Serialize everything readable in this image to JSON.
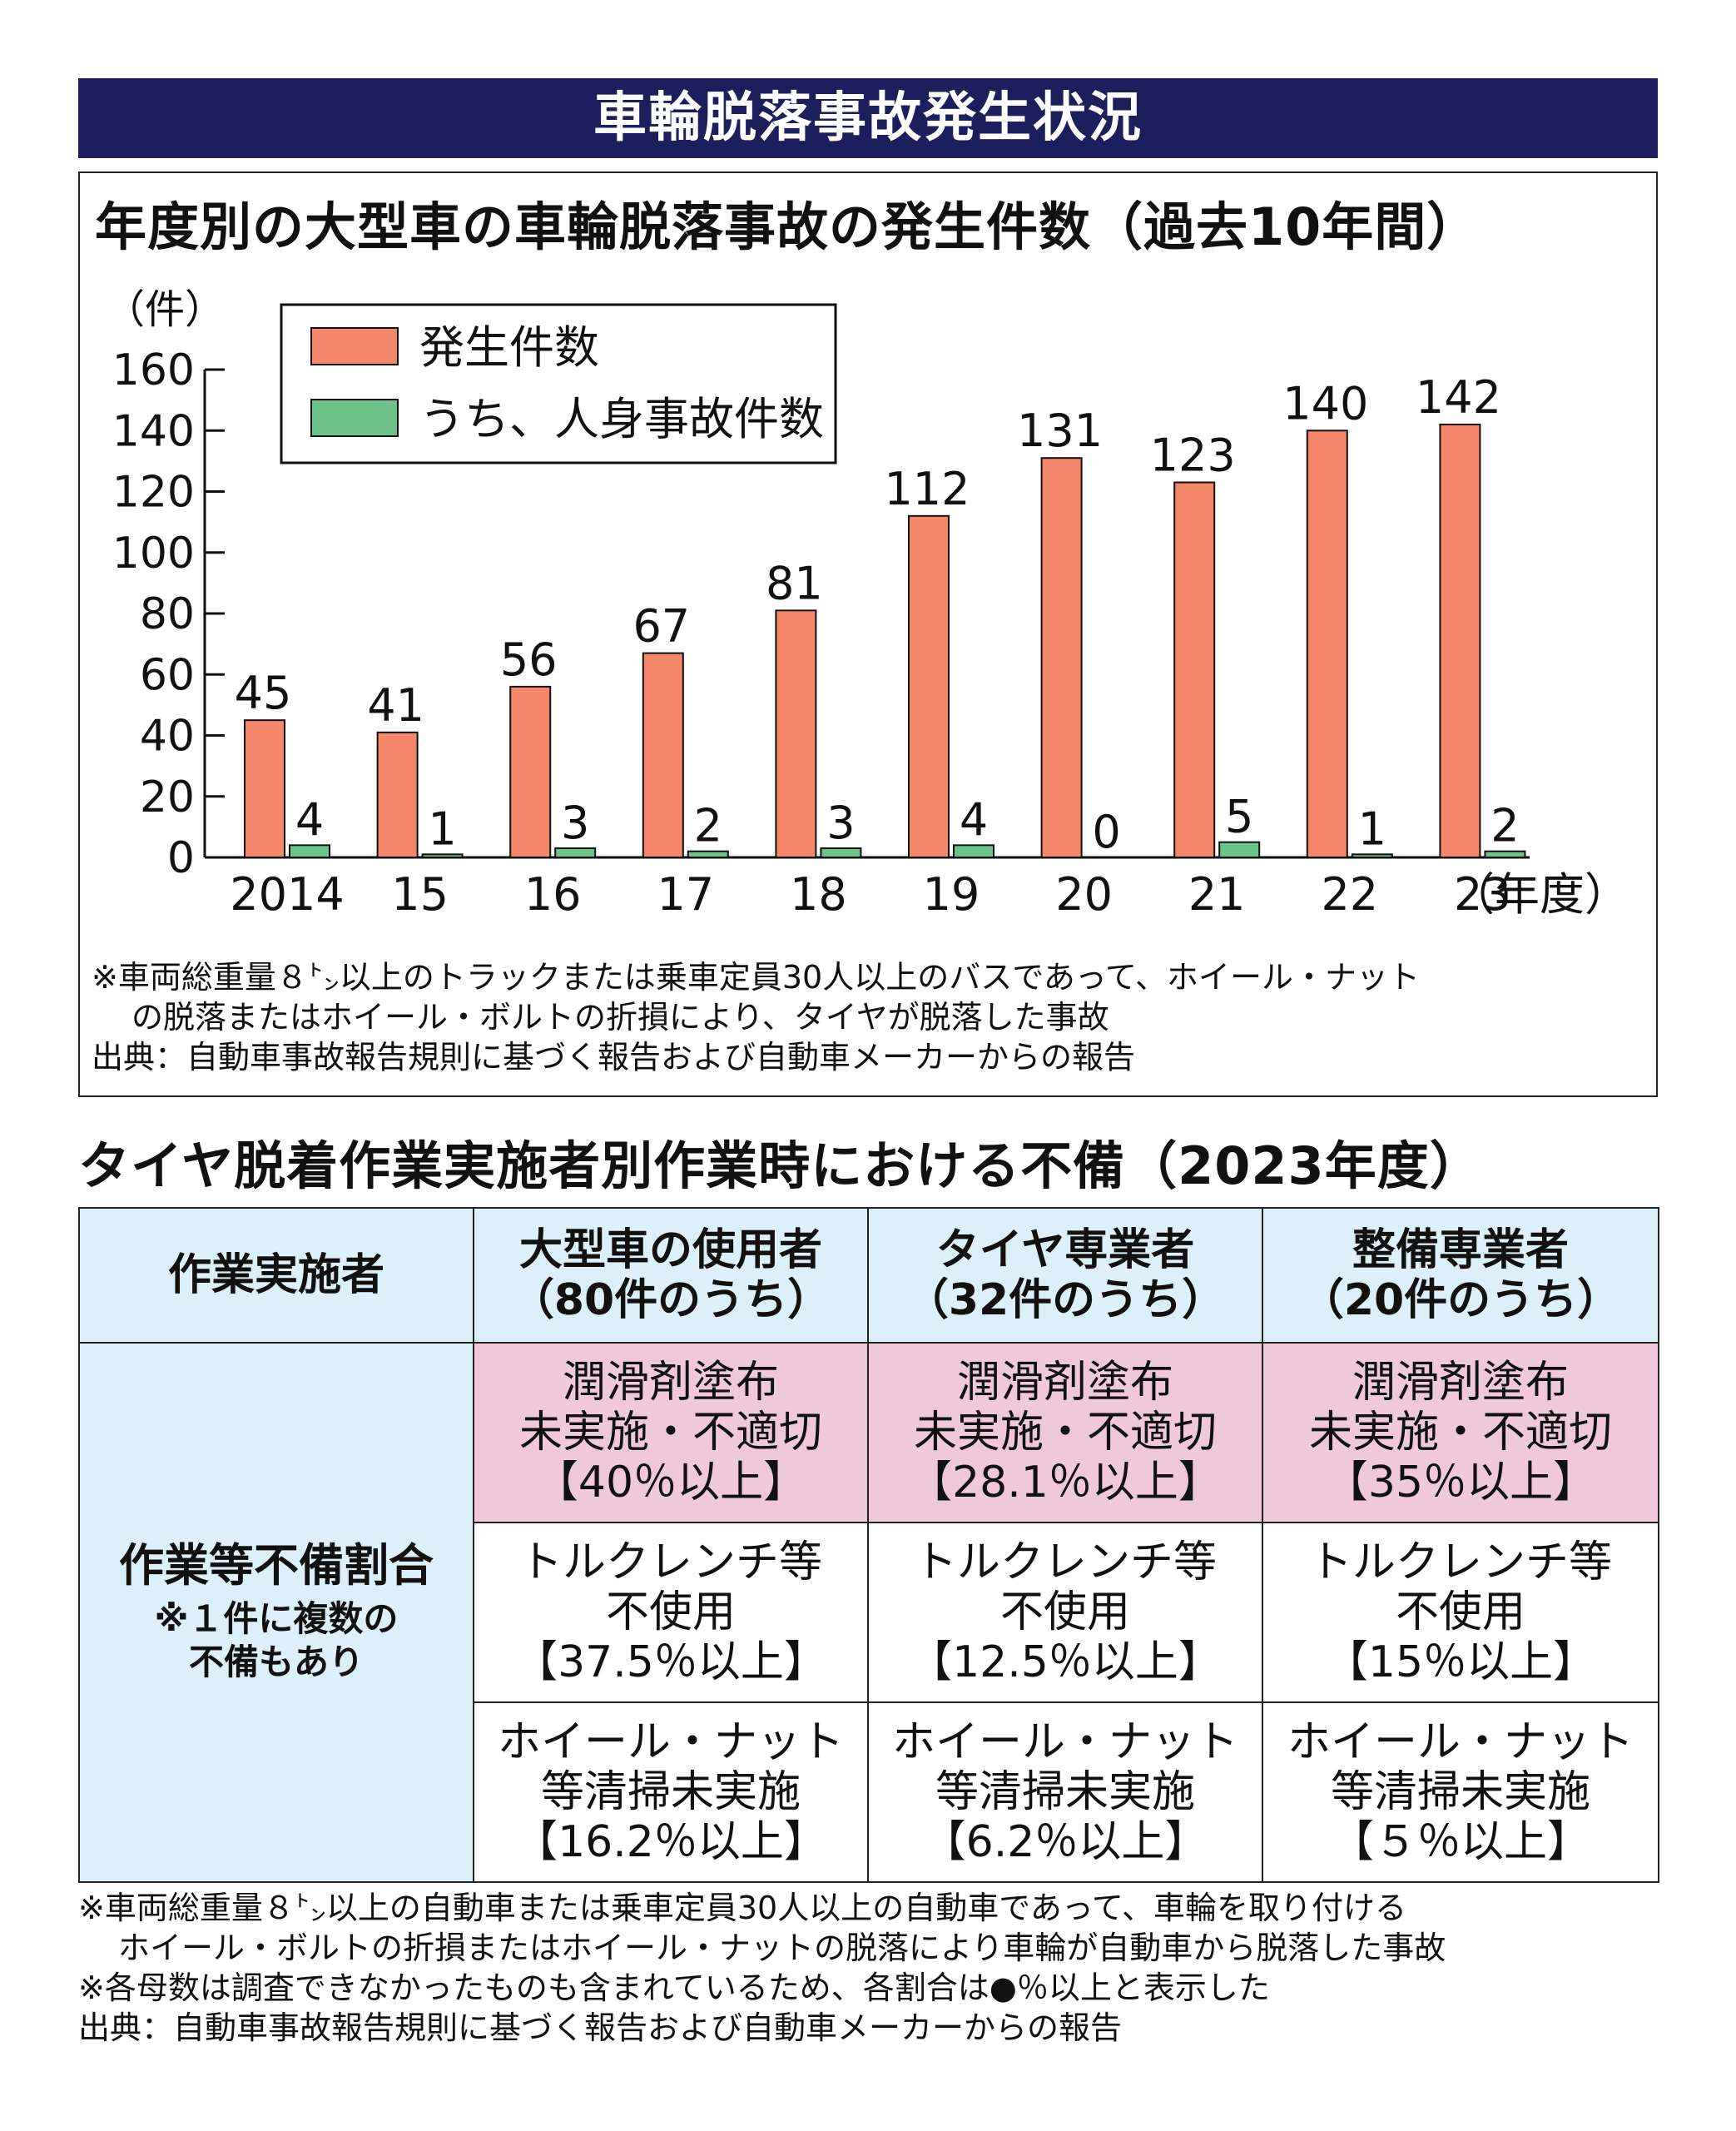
{
  "banner": {
    "title": "車輪脱落事故発生状況"
  },
  "chart_data": {
    "type": "bar",
    "title": "年度別の大型車の車輪脱落事故の発生件数（過去10年間）",
    "ylabel": "（件）",
    "xlabel_suffix": "（年度）",
    "categories": [
      "2014",
      "15",
      "16",
      "17",
      "18",
      "19",
      "20",
      "21",
      "22",
      "23"
    ],
    "ylim": [
      0,
      160
    ],
    "yticks": [
      0,
      20,
      40,
      60,
      80,
      100,
      120,
      140,
      160
    ],
    "legend_position": "top-left",
    "series": [
      {
        "name": "発生件数",
        "color": "#f4876a",
        "values": [
          45,
          41,
          56,
          67,
          81,
          112,
          131,
          123,
          140,
          142
        ]
      },
      {
        "name": "うち、人身事故件数",
        "color": "#6cc38a",
        "values": [
          4,
          1,
          3,
          2,
          3,
          4,
          0,
          5,
          1,
          2
        ]
      }
    ],
    "notes": [
      "※車両総重量８㌧以上のトラックまたは乗車定員30人以上のバスであって、ホイール・ナット",
      "の脱落またはホイール・ボルトの折損により、タイヤが脱落した事故",
      "出典：自動車事故報告規則に基づく報告および自動車メーカーからの報告"
    ]
  },
  "table": {
    "title": "タイヤ脱着作業実施者別作業時における不備（2023年度）",
    "header": {
      "corner": "作業実施者",
      "columns": [
        {
          "line1": "大型車の使用者",
          "line2": "（80件のうち）"
        },
        {
          "line1": "タイヤ専業者",
          "line2": "（32件のうち）"
        },
        {
          "line1": "整備専業者",
          "line2": "（20件のうち）"
        }
      ]
    },
    "row_header": {
      "main": "作業等不備割合",
      "sub1": "※１件に複数の",
      "sub2": "不備もあり"
    },
    "rows": [
      {
        "cells": [
          {
            "l1": "潤滑剤塗布",
            "l2": "未実施・不適切",
            "l3": "【40％以上】"
          },
          {
            "l1": "潤滑剤塗布",
            "l2": "未実施・不適切",
            "l3": "【28.1％以上】"
          },
          {
            "l1": "潤滑剤塗布",
            "l2": "未実施・不適切",
            "l3": "【35％以上】"
          }
        ]
      },
      {
        "cells": [
          {
            "l1": "トルクレンチ等",
            "l2": "不使用",
            "l3": "【37.5％以上】"
          },
          {
            "l1": "トルクレンチ等",
            "l2": "不使用",
            "l3": "【12.5％以上】"
          },
          {
            "l1": "トルクレンチ等",
            "l2": "不使用",
            "l3": "【15％以上】"
          }
        ]
      },
      {
        "cells": [
          {
            "l1": "ホイール・ナット",
            "l2": "等清掃未実施",
            "l3": "【16.2％以上】"
          },
          {
            "l1": "ホイール・ナット",
            "l2": "等清掃未実施",
            "l3": "【6.2％以上】"
          },
          {
            "l1": "ホイール・ナット",
            "l2": "等清掃未実施",
            "l3": "【５％以上】"
          }
        ]
      }
    ],
    "notes": [
      "※車両総重量８㌧以上の自動車または乗車定員30人以上の自動車であって、車輪を取り付ける",
      "ホイール・ボルトの折損またはホイール・ナットの脱落により車輪が自動車から脱落した事故",
      "※各母数は調査できなかったものも含まれているため、各割合は●％以上と表示した",
      "出典：自動車事故報告規則に基づく報告および自動車メーカーからの報告"
    ]
  }
}
